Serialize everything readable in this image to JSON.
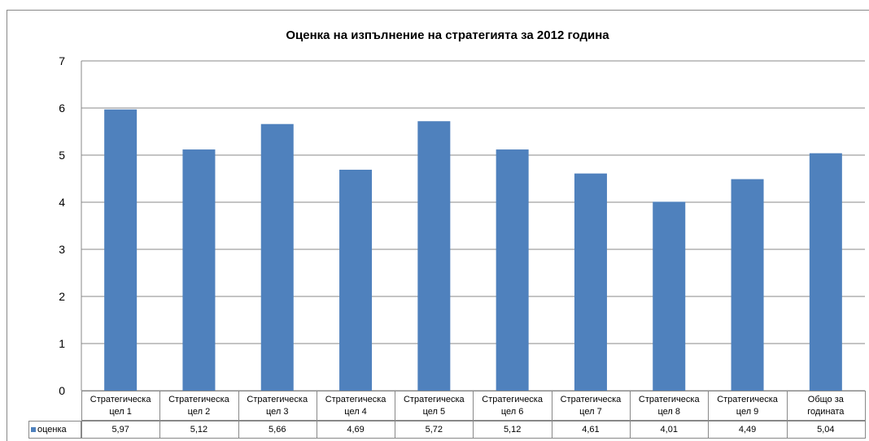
{
  "chart_data": {
    "type": "bar",
    "title": "Оценка на изпълнение на стратегията за 2012 година",
    "categories": [
      "Стратегическа цел 1",
      "Стратегическа цел 2",
      "Стратегическа цел 3",
      "Стратегическа цел 4",
      "Стратегическа цел 5",
      "Стратегическа цел 6",
      "Стратегическа цел 7",
      "Стратегическа цел 8",
      "Стратегическа цел 9",
      "Общо за годината"
    ],
    "series": [
      {
        "name": "оценка",
        "color": "#4f81bd",
        "values": [
          5.97,
          5.12,
          5.66,
          4.69,
          5.72,
          5.12,
          4.61,
          4.01,
          4.49,
          5.04
        ],
        "value_labels": [
          "5,97",
          "5,12",
          "5,66",
          "4,69",
          "5,72",
          "5,12",
          "4,61",
          "4,01",
          "4,49",
          "5,04"
        ]
      }
    ],
    "ylim": [
      0,
      7
    ],
    "yticks": [
      0,
      1,
      2,
      3,
      4,
      5,
      6,
      7
    ],
    "grid": true,
    "legend": "bottom-left"
  }
}
